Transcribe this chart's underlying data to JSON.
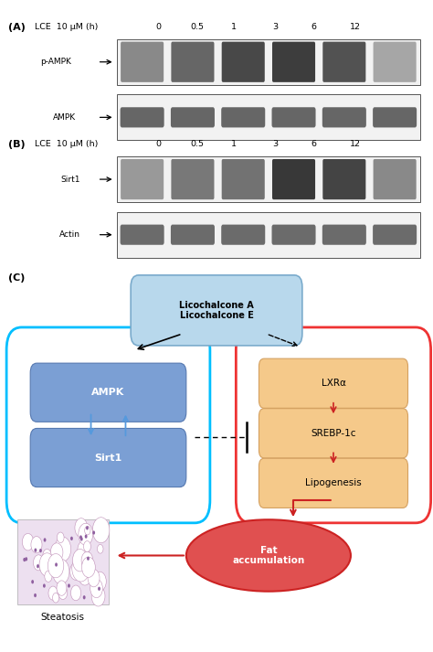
{
  "fig_width": 4.74,
  "fig_height": 7.13,
  "dpi": 100,
  "background_color": "#FFFFFF",
  "panel_A": {
    "label": "(A)",
    "header": "LCE  10 μM (h)",
    "time_points": [
      "0",
      "0.5",
      "1",
      "3",
      "6",
      "12"
    ],
    "rows": [
      "p-AMPK",
      "AMPK"
    ],
    "pampk_intensities": [
      0.38,
      0.6,
      0.78,
      0.85,
      0.72,
      0.2
    ],
    "ampk_intensities": [
      0.65,
      0.65,
      0.65,
      0.65,
      0.65,
      0.65
    ]
  },
  "panel_B": {
    "label": "(B)",
    "header": "LCE  10 μM (h)",
    "time_points": [
      "0",
      "0.5",
      "1",
      "3",
      "6",
      "12"
    ],
    "rows": [
      "Sirt1",
      "Actin"
    ],
    "sirt1_intensities": [
      0.28,
      0.48,
      0.52,
      0.88,
      0.8,
      0.38
    ],
    "actin_intensities": [
      0.62,
      0.62,
      0.62,
      0.62,
      0.62,
      0.62
    ]
  },
  "panel_C": {
    "label": "(C)",
    "top_box_text": "Licochalcone A\nLicochalcone E",
    "top_box_fc": "#B8D8EC",
    "top_box_ec": "#7AABCC",
    "left_box_ec": "#00BFFF",
    "right_box_ec": "#EE3333",
    "left_items": [
      "AMPK",
      "Sirt1"
    ],
    "left_item_fc": "#7B9FD4",
    "right_items": [
      "LXRα",
      "SREBP-1c",
      "Lipogenesis"
    ],
    "right_item_fc": "#F5C98A",
    "right_item_ec": "#D4A060",
    "fat_fc": "#E05050",
    "fat_ec": "#CC2222",
    "fat_text": "Fat\naccumulation",
    "steatosis_text": "Steatosis"
  }
}
